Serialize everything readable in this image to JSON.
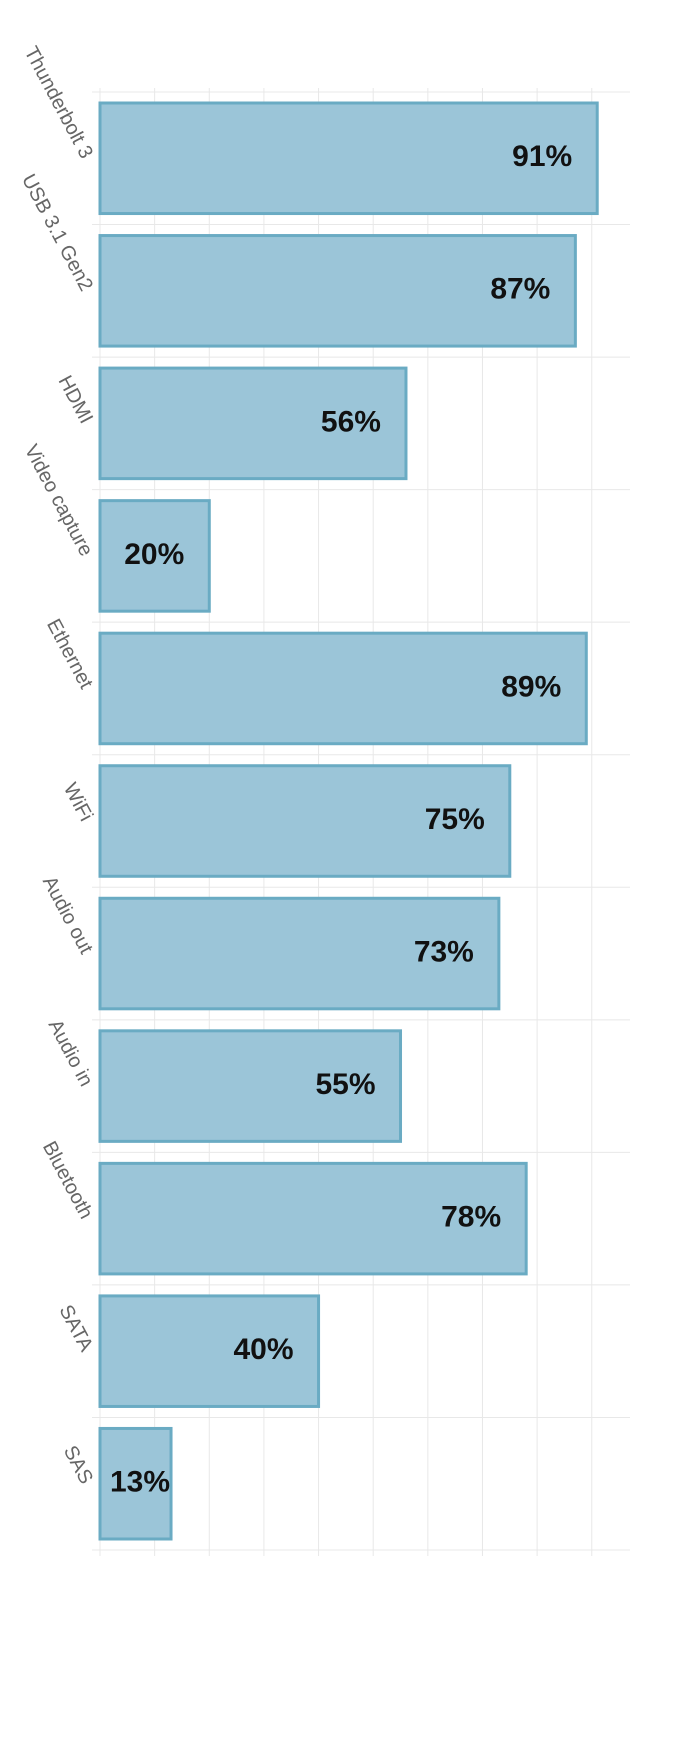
{
  "chart_data": {
    "type": "barh",
    "categories": [
      "Thunderbolt 3",
      "USB 3.1 Gen2",
      "HDMI",
      "Video capture",
      "Ethernet",
      "WiFi",
      "Audio out",
      "Audio in",
      "Bluetooth",
      "SATA",
      "SAS"
    ],
    "values": [
      91,
      87,
      56,
      20,
      89,
      75,
      73,
      55,
      78,
      40,
      13
    ],
    "value_labels": [
      "91%",
      "87%",
      "56%",
      "20%",
      "89%",
      "75%",
      "73%",
      "55%",
      "78%",
      "40%",
      "13%"
    ],
    "color": "#9bc5d8",
    "edge_color": "#6aabc3",
    "xlim": [
      0,
      97
    ],
    "xticks": [
      0,
      10,
      20,
      30,
      40,
      50,
      60,
      70,
      80,
      90
    ],
    "grid": true
  }
}
